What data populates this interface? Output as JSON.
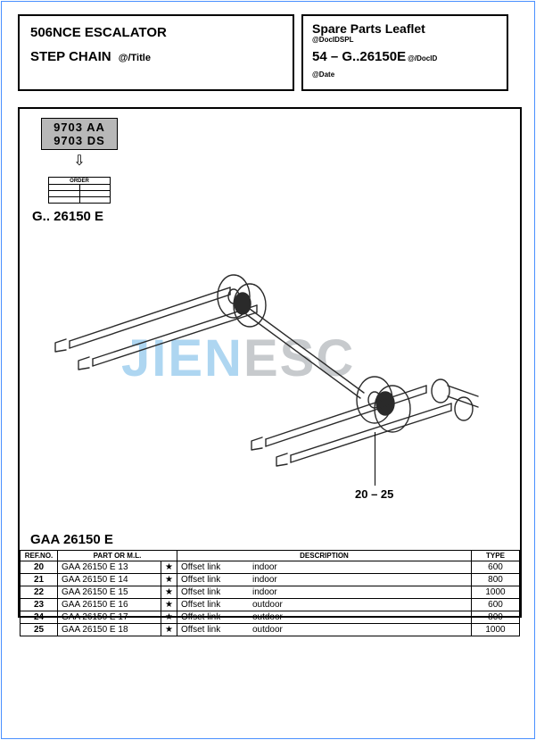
{
  "colors": {
    "frame": "#000000",
    "bg": "#ffffff",
    "rev_bg": "#b8b8b8",
    "wm_a": "#6db6e6",
    "wm_b": "#9aa0a6",
    "outer_frame": "#4a90ff",
    "stroke": "#2a2a2a"
  },
  "header": {
    "left": {
      "line1": "506NCE ESCALATOR",
      "line2": "STEP CHAIN",
      "title_var": "@/Title"
    },
    "right": {
      "title": "Spare Parts Leaflet",
      "doc_sub": "@DocIDSPL",
      "code": "54 – G..26150E",
      "docid": "@/DocID",
      "date": "@Date"
    }
  },
  "drawing": {
    "rev_a": "9703 AA",
    "rev_b": "9703 DS",
    "arrow_glyph": "⇩",
    "order_label": "ORDER",
    "part_label": "G.. 26150 E",
    "callout": "20 – 25"
  },
  "watermark": {
    "a": "JIEN",
    "b": "ESC"
  },
  "parts": {
    "caption": "GAA 26150 E",
    "columns": {
      "ref": "REF.NO.",
      "part": "PART OR M.L.",
      "desc": "DESCRIPTION",
      "type": "TYPE"
    },
    "star": "★",
    "rows": [
      {
        "ref": "20",
        "part": "GAA 26150 E 13",
        "star": "★",
        "desc_a": "Offset link",
        "desc_b": "indoor",
        "type": "600"
      },
      {
        "ref": "21",
        "part": "GAA 26150 E 14",
        "star": "★",
        "desc_a": "Offset link",
        "desc_b": "indoor",
        "type": "800"
      },
      {
        "ref": "22",
        "part": "GAA 26150 E 15",
        "star": "★",
        "desc_a": "Offset link",
        "desc_b": "indoor",
        "type": "1000"
      },
      {
        "ref": "23",
        "part": "GAA 26150 E 16",
        "star": "★",
        "desc_a": "Offset link",
        "desc_b": "outdoor",
        "type": "600"
      },
      {
        "ref": "24",
        "part": "GAA 26150 E 17",
        "star": "★",
        "desc_a": "Offset link",
        "desc_b": "outdoor",
        "type": "800"
      },
      {
        "ref": "25",
        "part": "GAA 26150 E 18",
        "star": "★",
        "desc_a": "Offset link",
        "desc_b": "outdoor",
        "type": "1000"
      }
    ]
  }
}
